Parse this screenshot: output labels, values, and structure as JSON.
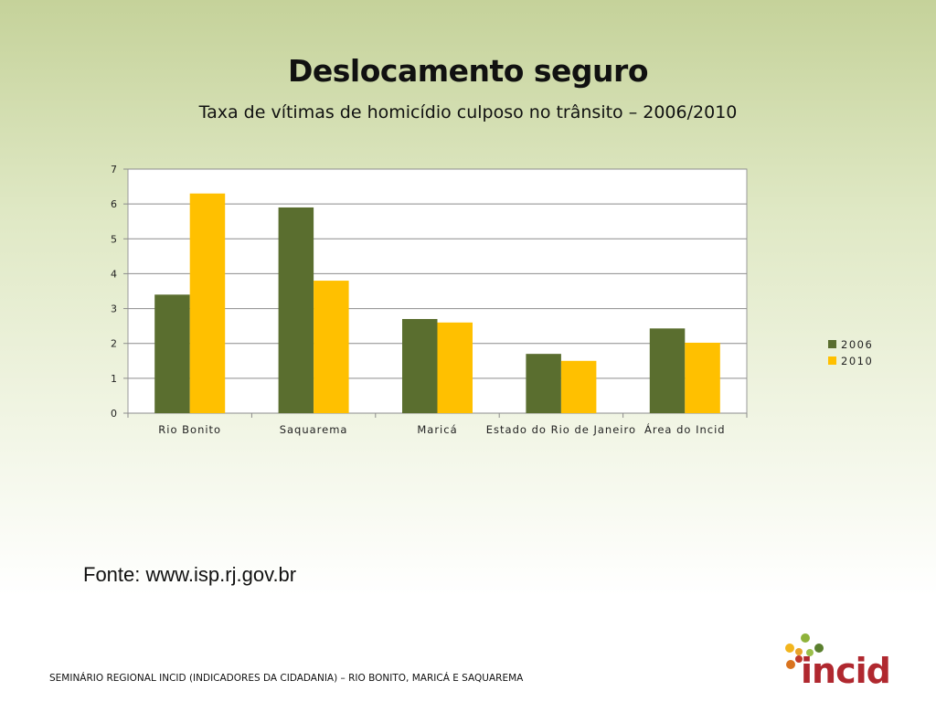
{
  "slide": {
    "title": "Deslocamento seguro",
    "subtitle": "Taxa de vítimas de homicídio culposo no trânsito – 2006/2010",
    "source": "Fonte: www.isp.rj.gov.br",
    "footer": "SEMINÁRIO REGIONAL INCID (INDICADORES DA CIDADANIA) – RIO BONITO, MARICÁ E SAQUAREMA",
    "logo_text": "incid"
  },
  "chart_data": {
    "type": "bar",
    "title": "",
    "xlabel": "",
    "ylabel": "",
    "categories": [
      "Rio Bonito",
      "Saquarema",
      "Maricá",
      "Estado do Rio de Janeiro",
      "Área do Incid"
    ],
    "series": [
      {
        "name": "2006",
        "color": "#5a6e2f",
        "values": [
          3.4,
          5.9,
          2.7,
          1.7,
          2.43
        ]
      },
      {
        "name": "2010",
        "color": "#ffc000",
        "values": [
          6.3,
          3.8,
          2.6,
          1.5,
          2.02
        ]
      }
    ],
    "ylim": [
      0,
      7
    ],
    "yticks": [
      0,
      1,
      2,
      3,
      4,
      5,
      6,
      7
    ],
    "grid": true,
    "legend": "right"
  }
}
